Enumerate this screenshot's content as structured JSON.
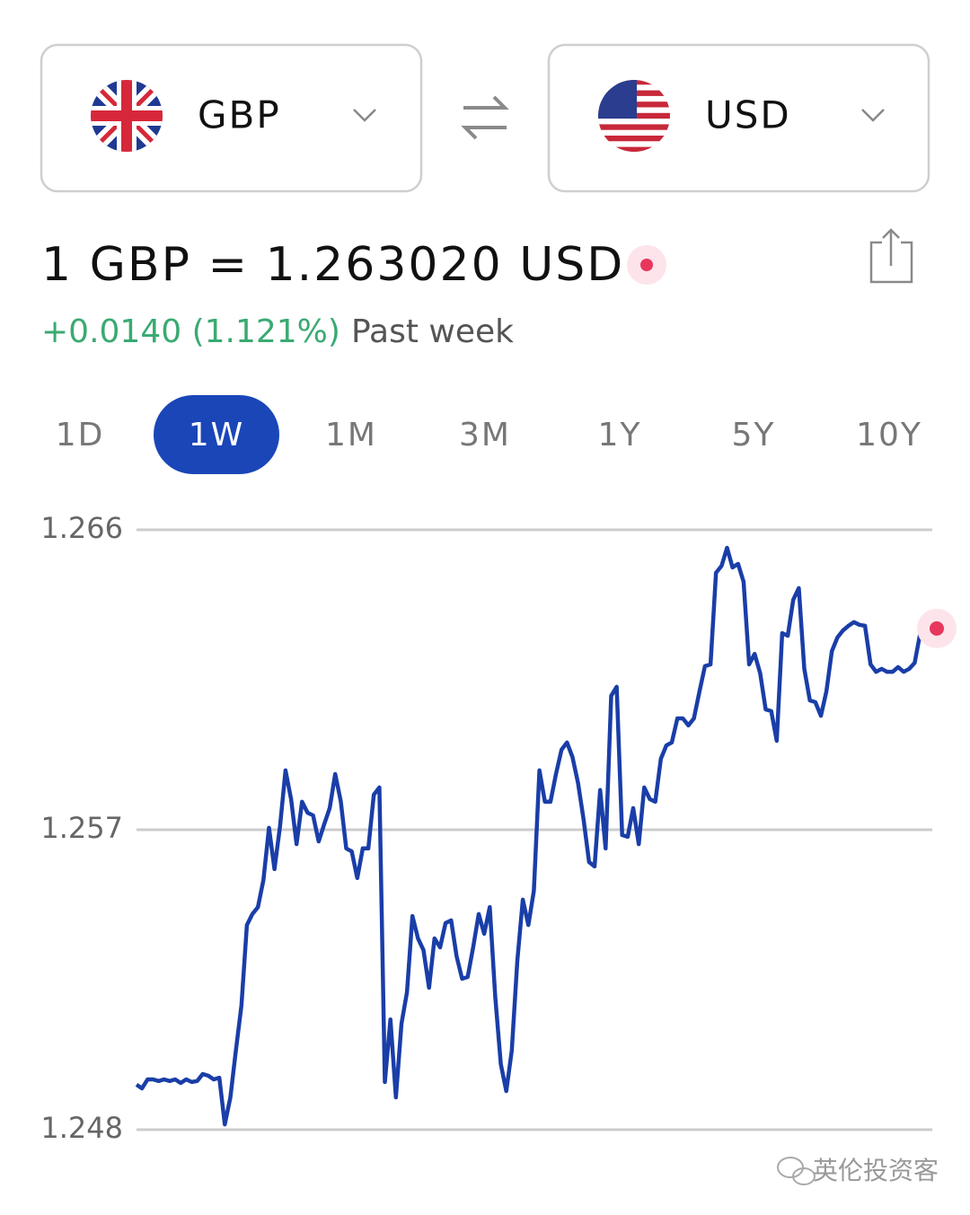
{
  "from_currency": {
    "code": "GBP"
  },
  "to_currency": {
    "code": "USD"
  },
  "rate": "1 GBP = 1.263020 USD",
  "change": "+0.0140 (1.121%)",
  "period_label": "Past week",
  "range_tabs": [
    "1D",
    "1W",
    "1M",
    "3M",
    "1Y",
    "5Y",
    "10Y"
  ],
  "active_tab": "1W",
  "watermark": "英伦投资客",
  "chart_data": {
    "type": "line",
    "ylim": [
      1.248,
      1.266
    ],
    "yticks": [
      1.248,
      1.257,
      1.266
    ],
    "grid": true,
    "last_point_marker_color": "#e8365d",
    "series": [
      {
        "color": "#1a3ea8",
        "values": [
          1.24935,
          1.24924,
          1.24951,
          1.24951,
          1.24946,
          1.24951,
          1.24946,
          1.24951,
          1.2494,
          1.24951,
          1.24943,
          1.24946,
          1.24967,
          1.24962,
          1.24951,
          1.24956,
          1.24816,
          1.24897,
          1.25037,
          1.25172,
          1.25414,
          1.25447,
          1.25468,
          1.25549,
          1.25706,
          1.25582,
          1.25711,
          1.25878,
          1.25792,
          1.25657,
          1.25784,
          1.25751,
          1.25743,
          1.25665,
          1.25716,
          1.25765,
          1.25867,
          1.25786,
          1.25644,
          1.25635,
          1.25555,
          1.25644,
          1.25644,
          1.25805,
          1.25827,
          1.24943,
          1.25131,
          1.24897,
          1.25118,
          1.25212,
          1.25441,
          1.25374,
          1.25339,
          1.25226,
          1.25374,
          1.25347,
          1.2542,
          1.25428,
          1.2532,
          1.25253,
          1.25258,
          1.25347,
          1.25447,
          1.25388,
          1.25468,
          1.25199,
          1.24997,
          1.24916,
          1.25037,
          1.25307,
          1.2549,
          1.25414,
          1.25517,
          1.25878,
          1.25784,
          1.25784,
          1.25867,
          1.2594,
          1.25962,
          1.25918,
          1.2584,
          1.25732,
          1.25603,
          1.2559,
          1.25819,
          1.25644,
          1.26102,
          1.26129,
          1.25684,
          1.25679,
          1.25765,
          1.25657,
          1.25827,
          1.25792,
          1.25784,
          1.25913,
          1.25953,
          1.25962,
          1.26034,
          1.26034,
          1.26013,
          1.26034,
          1.26115,
          1.26191,
          1.26196,
          1.26471,
          1.26492,
          1.26546,
          1.26487,
          1.26498,
          1.26444,
          1.26196,
          1.26228,
          1.26169,
          1.26061,
          1.26056,
          1.25967,
          1.2629,
          1.26282,
          1.2639,
          1.26425,
          1.26183,
          1.26088,
          1.26083,
          1.26042,
          1.26115,
          1.26236,
          1.26277,
          1.26298,
          1.26312,
          1.26323,
          1.26315,
          1.26312,
          1.26196,
          1.26174,
          1.26183,
          1.26174,
          1.26174,
          1.26188,
          1.26174,
          1.26183,
          1.26201,
          1.2629,
          1.26282,
          1.26285,
          1.26304
        ]
      }
    ]
  }
}
